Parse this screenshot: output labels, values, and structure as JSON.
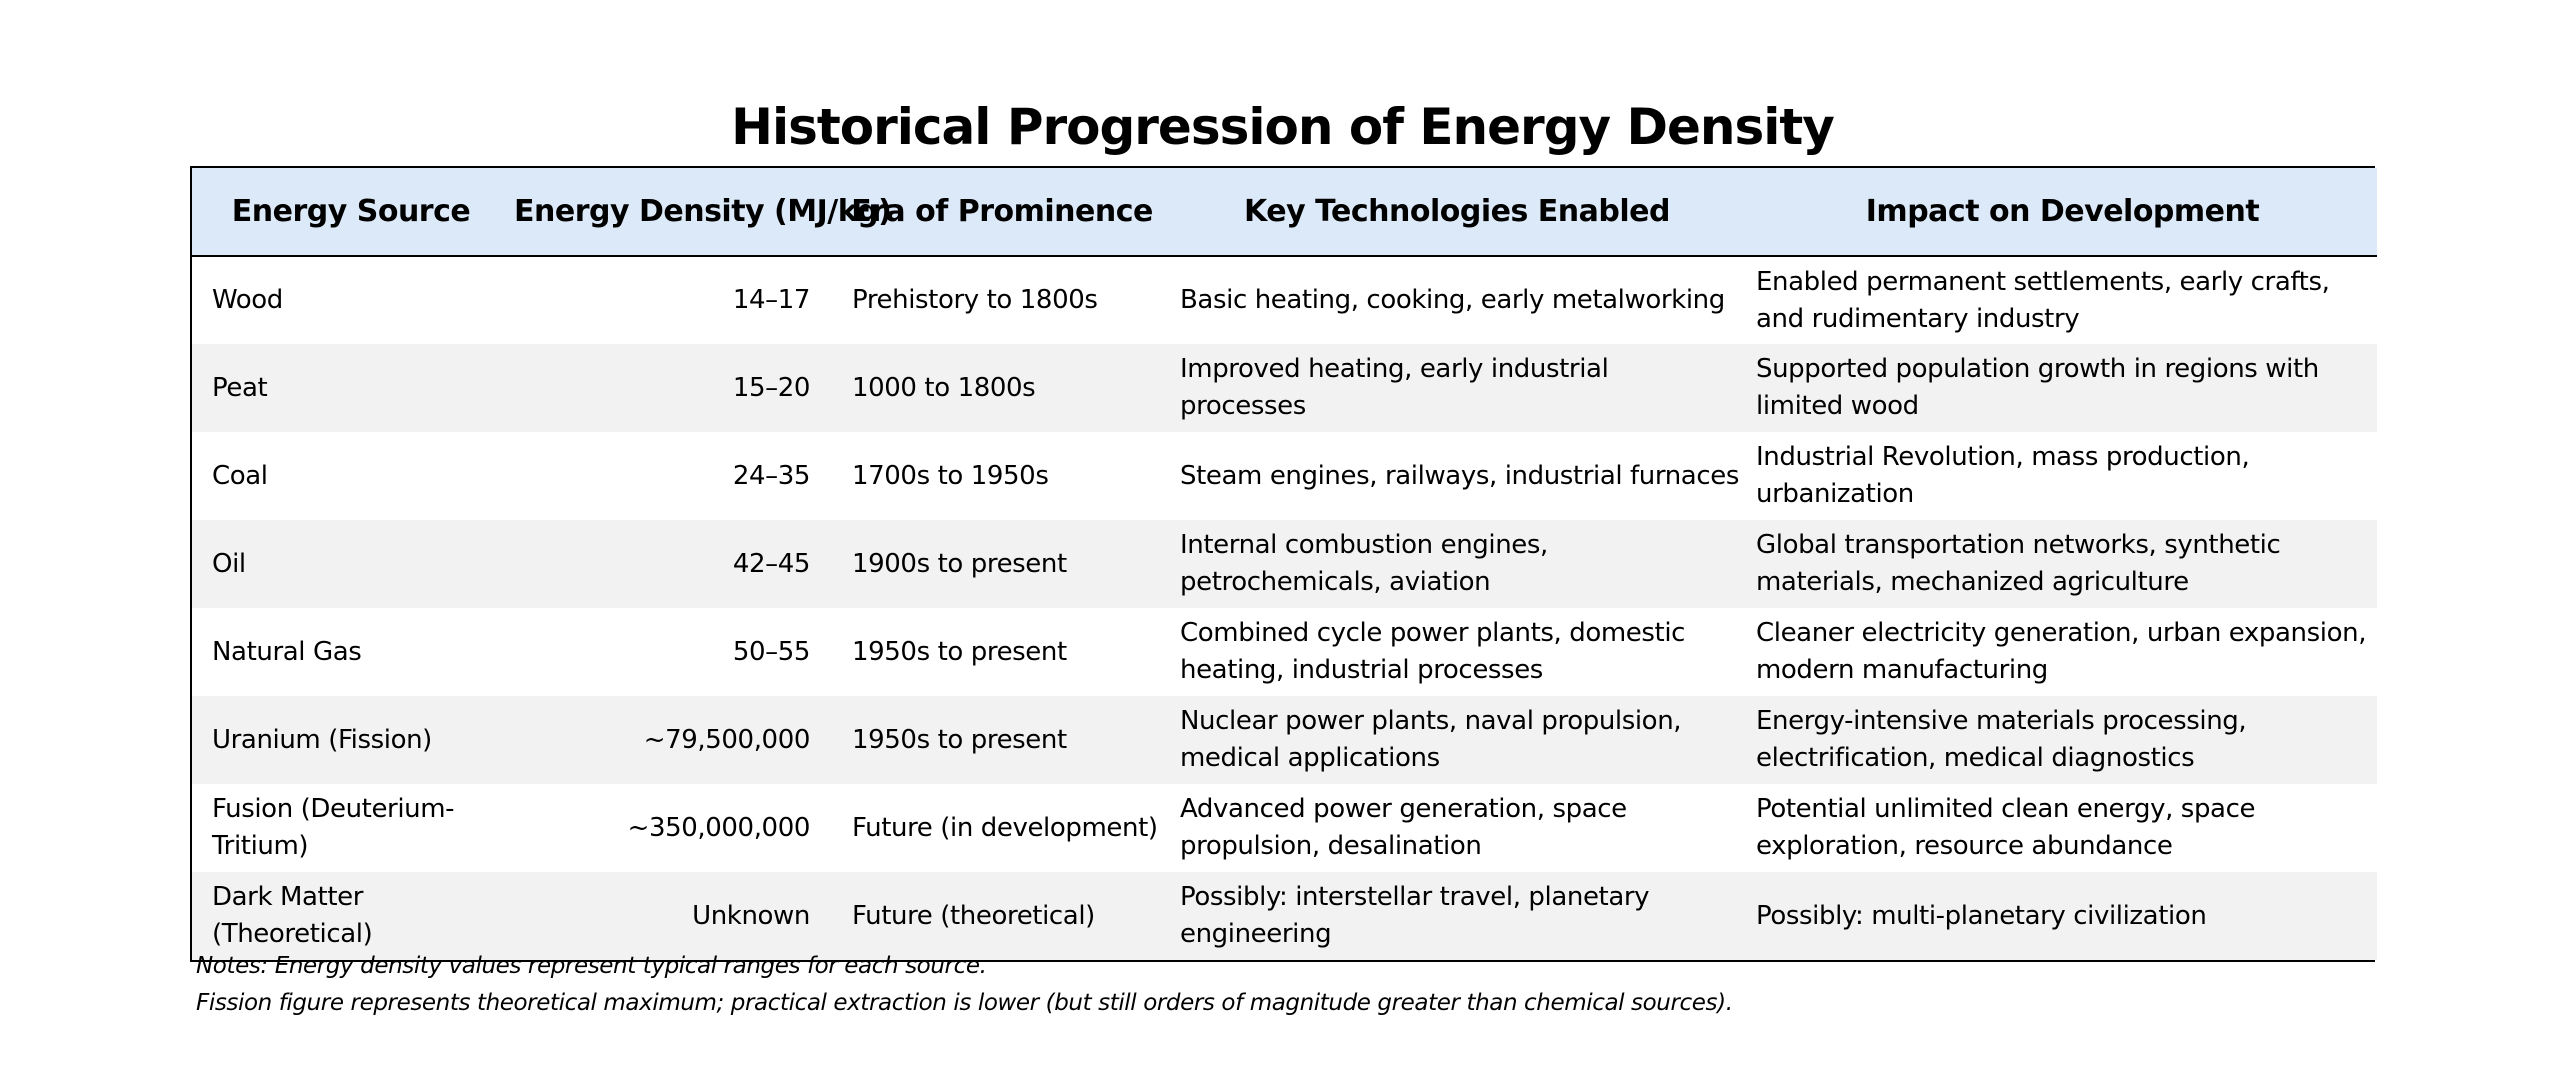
{
  "title": "Historical Progression of Energy Density",
  "headers": {
    "source": "Energy Source",
    "density": "Energy Density (MJ/kg)",
    "era": "Era of Prominence",
    "tech": "Key Technologies Enabled",
    "impact": "Impact on Development"
  },
  "rows": [
    {
      "source": "Wood",
      "density": "14–17",
      "era": "Prehistory to 1800s",
      "tech": "Basic heating, cooking, early metalworking",
      "impact": "Enabled permanent settlements, early crafts, and rudimentary industry"
    },
    {
      "source": "Peat",
      "density": "15–20",
      "era": "1000 to 1800s",
      "tech": "Improved heating, early industrial processes",
      "impact": "Supported population growth in regions with limited wood"
    },
    {
      "source": "Coal",
      "density": "24–35",
      "era": "1700s to 1950s",
      "tech": "Steam engines, railways, industrial furnaces",
      "impact": "Industrial Revolution, mass production, urbanization"
    },
    {
      "source": "Oil",
      "density": "42–45",
      "era": "1900s to present",
      "tech": "Internal combustion engines, petrochemicals, aviation",
      "impact": "Global transportation networks, synthetic materials, mechanized agriculture"
    },
    {
      "source": "Natural Gas",
      "density": "50–55",
      "era": "1950s to present",
      "tech": "Combined cycle power plants, domestic heating, industrial processes",
      "impact": "Cleaner electricity generation, urban expansion, modern manufacturing"
    },
    {
      "source": "Uranium (Fission)",
      "density": "~79,500,000",
      "era": "1950s to present",
      "tech": "Nuclear power plants, naval propulsion, medical applications",
      "impact": "Energy-intensive materials processing, electrification, medical diagnostics"
    },
    {
      "source": "Fusion (Deuterium-Tritium)",
      "density": "~350,000,000",
      "era": "Future (in development)",
      "tech": "Advanced power generation, space propulsion, desalination",
      "impact": "Potential unlimited clean energy, space exploration, resource abundance"
    },
    {
      "source": "Dark Matter (Theoretical)",
      "density": "Unknown",
      "era": "Future (theoretical)",
      "tech": "Possibly: interstellar travel, planetary engineering",
      "impact": "Possibly: multi-planetary civilization"
    }
  ],
  "notes": [
    "Notes: Energy density values represent typical ranges for each source.",
    "Fission figure represents theoretical maximum; practical extraction is lower (but still orders of magnitude greater than chemical sources)."
  ],
  "colors": {
    "header_bg": "#dce9f8",
    "stripe_bg": "#f2f2f2",
    "border": "#000000"
  }
}
